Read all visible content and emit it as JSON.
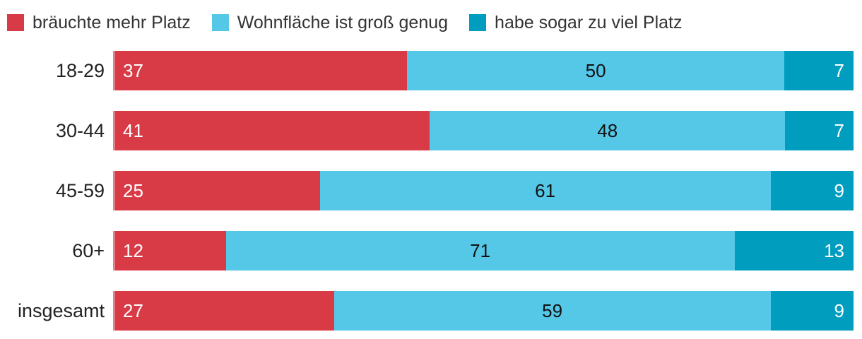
{
  "colors": {
    "needs_more_space": "#d83a46",
    "big_enough": "#55c8e8",
    "too_much_space": "#009dbe",
    "label_text": "#222222",
    "legend_text": "#333333"
  },
  "legend": {
    "items": [
      {
        "label": "bräuchte mehr Platz",
        "color": "#d83a46"
      },
      {
        "label": "Wohnfläche ist groß genug",
        "color": "#55c8e8"
      },
      {
        "label": "habe sogar zu viel Platz",
        "color": "#009dbe"
      }
    ]
  },
  "chart_data": {
    "type": "bar",
    "orientation": "horizontal",
    "stacked": true,
    "normalized": true,
    "categories": [
      "18-29",
      "30-44",
      "45-59",
      "60+",
      "insgesamt"
    ],
    "series": [
      {
        "name": "bräuchte mehr Platz",
        "color": "#d83a46",
        "values": [
          37,
          41,
          25,
          12,
          27
        ]
      },
      {
        "name": "Wohnfläche ist groß genug",
        "color": "#55c8e8",
        "values": [
          50,
          48,
          61,
          71,
          59
        ]
      },
      {
        "name": "habe sogar zu viel Platz",
        "color": "#009dbe",
        "values": [
          7,
          7,
          9,
          13,
          9
        ]
      }
    ],
    "title": "",
    "xlabel": "",
    "ylabel": "",
    "legend_position": "top",
    "grid": false,
    "value_labels": "inside"
  }
}
